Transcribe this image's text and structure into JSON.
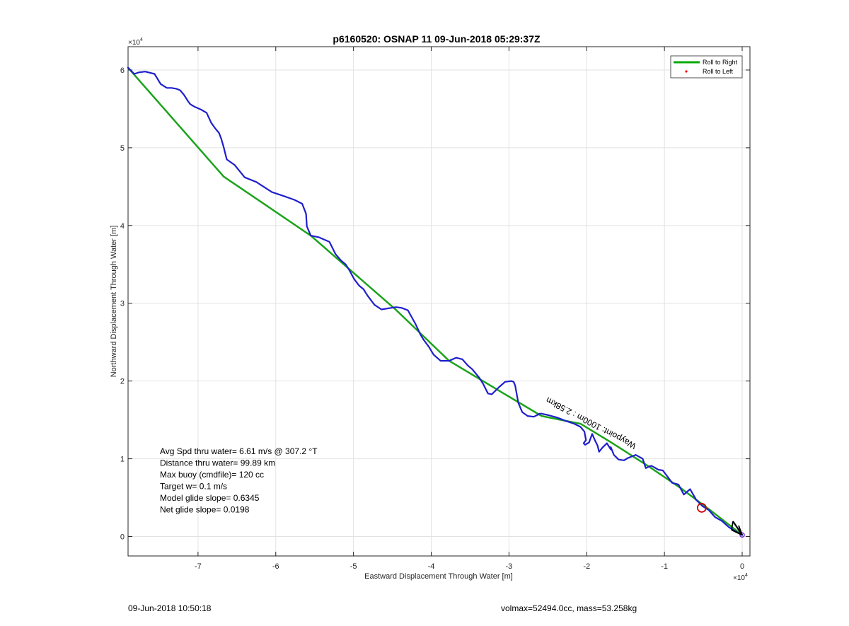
{
  "chart_data": {
    "type": "line",
    "title": "p6160520: OSNAP 11 09-Jun-2018 05:29:37Z",
    "xlabel": "Eastward Displacement Through Water [m]",
    "ylabel": "Northward Displacement Through Water [m]",
    "x_exponent_label": "×10",
    "x_exponent_power": "4",
    "y_exponent_label": "×10",
    "y_exponent_power": "4",
    "xlim": [
      -79000,
      1000
    ],
    "ylim": [
      -2500,
      63000
    ],
    "xticks": [
      -70000,
      -60000,
      -50000,
      -40000,
      -30000,
      -20000,
      -10000,
      0
    ],
    "xtick_labels": [
      "-7",
      "-6",
      "-5",
      "-4",
      "-3",
      "-2",
      "-1",
      "0"
    ],
    "yticks": [
      0,
      10000,
      20000,
      30000,
      40000,
      50000,
      60000
    ],
    "ytick_labels": [
      "0",
      "1",
      "2",
      "3",
      "4",
      "5",
      "6"
    ],
    "grid": true,
    "legend_position": "top-right",
    "legend": [
      {
        "label": "Roll to Right",
        "color": "#00aa00",
        "marker": "line"
      },
      {
        "label": "Roll to Left",
        "color": "#ff0000",
        "marker": "dot"
      }
    ],
    "series": [
      {
        "name": "Roll to Right",
        "color": "#1aa31a",
        "x": [
          -79000,
          -66700,
          -55500,
          -44700,
          -37700,
          -30500,
          -25800,
          -20800,
          -17000,
          -12000,
          -8000,
          -4000,
          0
        ],
        "y": [
          60300,
          46300,
          38700,
          29300,
          22600,
          18300,
          15500,
          14500,
          12200,
          9000,
          6300,
          3300,
          200
        ]
      },
      {
        "color": "#1f1fcc",
        "x": [
          -79000,
          -78200,
          -77600,
          -76800,
          -75600,
          -74800,
          -74000,
          -73400,
          -72800,
          -72300,
          -71800,
          -71300,
          -71000,
          -70500,
          -69600,
          -68900,
          -68300,
          -67800,
          -67300,
          -67000,
          -66700,
          -66300,
          -65300,
          -64000,
          -62500,
          -60500,
          -59000,
          -57600,
          -56600,
          -56100,
          -56000,
          -55500,
          -54500,
          -53100,
          -52300,
          -51600,
          -51000,
          -50500,
          -49900,
          -49300,
          -48700,
          -48200,
          -47300,
          -46400,
          -45200,
          -44500,
          -43800,
          -43000,
          -42000,
          -41400,
          -41100,
          -40900,
          -40300,
          -39700,
          -38800,
          -37700,
          -36800,
          -36000,
          -35300,
          -34700,
          -33800,
          -33300,
          -33000,
          -32700,
          -32200,
          -31300,
          -30500,
          -29700,
          -29400,
          -29200,
          -28800,
          -28300,
          -27600,
          -26800,
          -26200,
          -26100,
          -25800,
          -24900,
          -23800,
          -22800,
          -21600,
          -20800,
          -20300,
          -20100,
          -20400,
          -20200,
          -19700,
          -19300,
          -18900,
          -18600,
          -18400,
          -18000,
          -17400,
          -16900,
          -16900,
          -16500,
          -15900,
          -15200,
          -14700,
          -13700,
          -12800,
          -12400,
          -12000,
          -11700,
          -11300,
          -10800,
          -10200,
          -9600,
          -9000,
          -8200,
          -7500,
          -6700,
          -5900,
          -5100,
          -4300,
          -3500,
          -2600,
          -1700,
          -900,
          0
        ],
        "y": [
          60300,
          59500,
          59700,
          59800,
          59500,
          58200,
          57700,
          57700,
          57600,
          57400,
          56800,
          56000,
          55600,
          55300,
          54900,
          54500,
          53200,
          52500,
          51900,
          51100,
          50100,
          48500,
          47800,
          46200,
          45600,
          44300,
          43800,
          43300,
          42800,
          41500,
          39900,
          38700,
          38500,
          37900,
          36300,
          35500,
          35000,
          34200,
          33100,
          32300,
          31800,
          31000,
          29800,
          29200,
          29400,
          29500,
          29400,
          29100,
          27300,
          26000,
          25500,
          25200,
          24400,
          23400,
          22600,
          22600,
          23000,
          22800,
          22000,
          21500,
          20400,
          19600,
          19000,
          18400,
          18300,
          19200,
          19900,
          20000,
          19900,
          19400,
          17200,
          16000,
          15500,
          15400,
          15700,
          15800,
          15800,
          15600,
          15300,
          14900,
          14500,
          14100,
          13500,
          12400,
          12000,
          11800,
          12100,
          13200,
          12300,
          11700,
          10900,
          11400,
          12000,
          11200,
          11500,
          10500,
          9900,
          9800,
          10100,
          10500,
          10000,
          8800,
          9000,
          9100,
          8900,
          8600,
          8500,
          7700,
          6900,
          6700,
          5400,
          6100,
          4700,
          3900,
          3400,
          2500,
          2000,
          1200,
          700,
          200
        ]
      }
    ],
    "annotation": "Waypoint: 1000m : 2.58km",
    "current_position_marker": {
      "x": -5200,
      "y": 3700,
      "color": "#cc0000"
    },
    "start_marker": {
      "x": 0,
      "y": 200,
      "color": "#7a2fd6"
    },
    "stats": [
      "Avg Spd thru water=  6.61 m/s @ 307.2 °T",
      "Distance thru water= 99.89 km",
      "Max buoy (cmdfile)= 120 cc",
      "Target w= 0.1 m/s",
      "Model glide slope= 0.6345",
      "Net glide slope= 0.0198"
    ]
  },
  "footer": {
    "left": "09-Jun-2018 10:50:18",
    "right": "volmax=52494.0cc, mass=53.258kg"
  }
}
